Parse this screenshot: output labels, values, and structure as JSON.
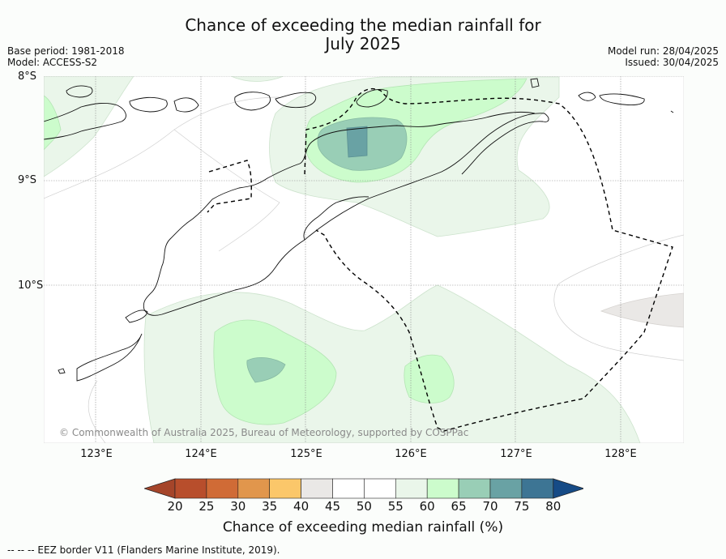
{
  "title_line1": "Chance of exceeding the median rainfall for",
  "title_line2": "July 2025",
  "base_period": "Base period: 1981-2018",
  "model": "Model: ACCESS-S2",
  "model_run": "Model run: 28/04/2025",
  "issued": "Issued: 30/04/2025",
  "lat_labels": [
    "8°S",
    "9°S",
    "10°S"
  ],
  "lon_labels": [
    "123°E",
    "124°E",
    "125°E",
    "126°E",
    "127°E",
    "128°E"
  ],
  "copyright": "© Commonwealth of Australia 2025, Bureau of Meteorology, supported by COSPPac",
  "colorbar": {
    "title": "Chance of exceeding median rainfall (%)",
    "ticks": [
      "20",
      "25",
      "30",
      "35",
      "40",
      "45",
      "50",
      "55",
      "60",
      "65",
      "70",
      "75",
      "80"
    ],
    "colors": [
      "#a5452a",
      "#b84e2c",
      "#d06b36",
      "#e1964c",
      "#fbc76a",
      "#eae8e6",
      "#ffffff",
      "#ffffff",
      "#eaf6ea",
      "#ccfccc",
      "#99ceb6",
      "#69a2a4",
      "#3d7594",
      "#164b86"
    ]
  },
  "footer": "--  --  -- EEZ border V11 (Flanders Marine Institute, 2019)."
}
